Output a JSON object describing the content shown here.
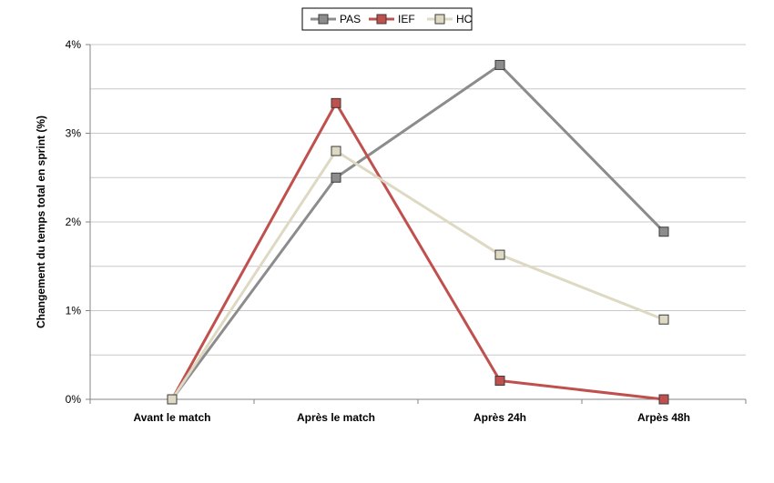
{
  "chart_data": {
    "type": "line",
    "categories": [
      "Avant le match",
      "Après le match",
      "Après 24h",
      "Arpès 48h"
    ],
    "series": [
      {
        "name": "PAS",
        "values": [
          0.0,
          2.5,
          3.77,
          1.89
        ],
        "color": "#8c8c8c"
      },
      {
        "name": "IEF",
        "values": [
          0.0,
          3.34,
          0.21,
          0.0
        ],
        "color": "#c0504d"
      },
      {
        "name": "HC",
        "values": [
          0.0,
          2.8,
          1.63,
          0.9
        ],
        "color": "#ddd9c3"
      }
    ],
    "ylabel": "Changement du temps total en sprint (%)",
    "ylim": [
      0,
      4
    ],
    "yticks": [
      0,
      1,
      2,
      3,
      4
    ],
    "ytick_labels": [
      "0%",
      "1%",
      "2%",
      "3%",
      "4%"
    ],
    "grid": true,
    "legend_position": "top-center"
  }
}
